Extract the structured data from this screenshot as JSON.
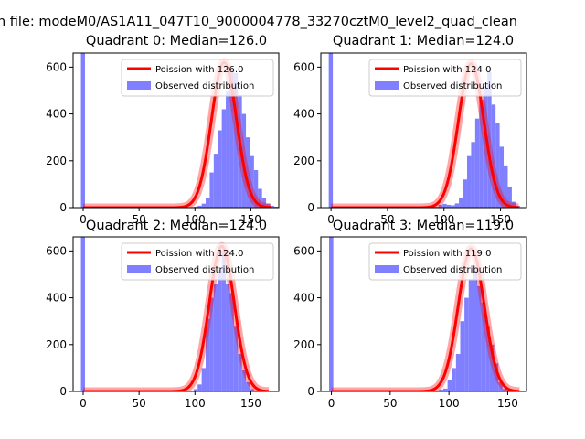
{
  "figure_title": "n file: modeM0/AS1A11_047T10_9000004778_33270cztM0_level2_quad_clean",
  "colors": {
    "hist": "#7f7fff",
    "fit": "#ff0000",
    "axes": "#000000"
  },
  "chart_data": [
    {
      "type": "histogram",
      "title": "Quadrant 0: Median=126.0",
      "xlim": [
        -9,
        175
      ],
      "ylim": [
        0,
        660
      ],
      "xticks": [
        0,
        50,
        100,
        150
      ],
      "yticks": [
        0,
        200,
        400,
        600
      ],
      "legend": [
        "Poission with 126.0",
        "Observed distribution"
      ],
      "legend_position": "upper right",
      "hist": {
        "bin_start": -2,
        "bin_width": 3.6,
        "values": [
          660,
          0,
          0,
          0,
          0,
          0,
          0,
          0,
          0,
          0,
          0,
          0,
          0,
          0,
          0,
          0,
          0,
          0,
          0,
          0,
          0,
          0,
          0,
          4,
          0,
          0,
          0,
          2,
          4,
          8,
          17,
          42,
          150,
          230,
          330,
          420,
          500,
          585,
          575,
          480,
          400,
          300,
          220,
          160,
          80,
          40,
          16,
          8,
          4,
          2
        ]
      },
      "fit": {
        "mean": 126,
        "peak": 620,
        "sigma": 11.2,
        "x_end": 168
      }
    },
    {
      "type": "histogram",
      "title": "Quadrant 1: Median=124.0",
      "xlim": [
        -9,
        173
      ],
      "ylim": [
        0,
        660
      ],
      "xticks": [
        0,
        50,
        100,
        150
      ],
      "yticks": [
        0,
        200,
        400,
        600
      ],
      "legend": [
        "Poission with 124.0",
        "Observed distribution"
      ],
      "legend_position": "upper right",
      "hist": {
        "bin_start": -2,
        "bin_width": 3.6,
        "values": [
          660,
          0,
          0,
          0,
          0,
          0,
          0,
          0,
          0,
          0,
          0,
          0,
          0,
          0,
          0,
          0,
          0,
          0,
          0,
          0,
          0,
          0,
          0,
          0,
          0,
          0,
          3,
          12,
          16,
          12,
          10,
          18,
          40,
          120,
          220,
          280,
          380,
          460,
          520,
          580,
          440,
          360,
          260,
          180,
          90,
          25,
          8,
          2
        ]
      },
      "fit": {
        "mean": 124,
        "peak": 615,
        "sigma": 11.2,
        "x_end": 166
      }
    },
    {
      "type": "histogram",
      "title": "Quadrant 2: Median=124.0",
      "xlim": [
        -9,
        175
      ],
      "ylim": [
        0,
        660
      ],
      "xticks": [
        0,
        50,
        100,
        150
      ],
      "yticks": [
        0,
        200,
        400,
        600
      ],
      "legend": [
        "Poission with 124.0",
        "Observed distribution"
      ],
      "legend_position": "upper right",
      "hist": {
        "bin_start": -2,
        "bin_width": 3.6,
        "values": [
          660,
          0,
          0,
          0,
          0,
          0,
          0,
          0,
          0,
          0,
          0,
          0,
          0,
          0,
          0,
          0,
          0,
          0,
          0,
          0,
          0,
          0,
          0,
          3,
          0,
          0,
          2,
          4,
          10,
          30,
          100,
          310,
          400,
          460,
          520,
          600,
          460,
          420,
          280,
          160,
          90,
          40,
          10,
          2
        ]
      },
      "fit": {
        "mean": 124,
        "peak": 620,
        "sigma": 11.2,
        "x_end": 166
      }
    },
    {
      "type": "histogram",
      "title": "Quadrant 3: Median=119.0",
      "xlim": [
        -9,
        166
      ],
      "ylim": [
        0,
        660
      ],
      "xticks": [
        0,
        50,
        100,
        150
      ],
      "yticks": [
        0,
        200,
        400,
        600
      ],
      "legend": [
        "Poission with 119.0",
        "Observed distribution"
      ],
      "legend_position": "upper right",
      "hist": {
        "bin_start": -2,
        "bin_width": 3.6,
        "values": [
          660,
          0,
          0,
          0,
          0,
          0,
          0,
          0,
          0,
          0,
          0,
          0,
          0,
          0,
          0,
          0,
          0,
          0,
          0,
          0,
          0,
          0,
          5,
          3,
          0,
          4,
          8,
          12,
          50,
          100,
          160,
          300,
          400,
          480,
          520,
          450,
          380,
          280,
          200,
          120,
          40,
          10,
          2
        ]
      },
      "fit": {
        "mean": 119,
        "peak": 610,
        "sigma": 11,
        "x_end": 160
      }
    }
  ]
}
